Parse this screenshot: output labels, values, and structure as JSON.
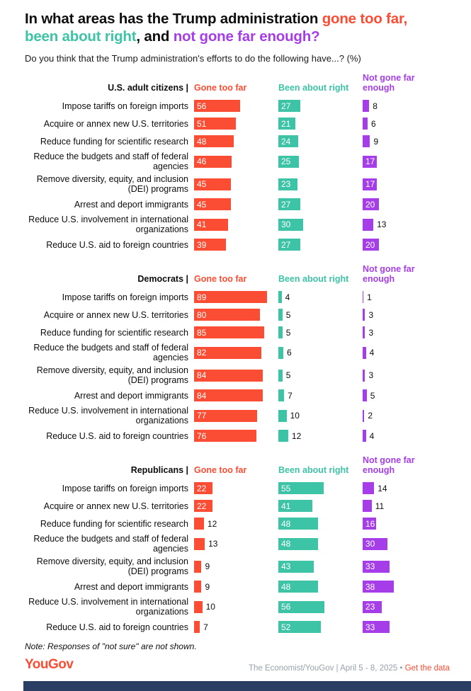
{
  "title": {
    "prefix": "In what areas has the Trump administration ",
    "highlight_red": "gone too far,",
    "sep1": " ",
    "highlight_teal": "been about right",
    "sep2": ", and ",
    "highlight_purple": "not gone far enough?"
  },
  "subtitle": "Do you think that the Trump administration's efforts to do the following have...? (%)",
  "note": "Note: Responses of \"not sure\" are not shown.",
  "footer": {
    "logo": "YouGov",
    "source": "The Economist/YouGov | April 5 - 8, 2025 • ",
    "link": "Get the data"
  },
  "chart_data": {
    "type": "bar",
    "unit": "%",
    "xlim": [
      0,
      100
    ],
    "legend_position": "top",
    "series_names": [
      "Gone too far",
      "Been about right",
      "Not gone far enough"
    ],
    "series_colors": [
      "#fb4d33",
      "#3dc3a6",
      "#a53de8"
    ],
    "categories": [
      "Impose tariffs on foreign imports",
      "Acquire or annex new U.S. territories",
      "Reduce funding for scientific research",
      "Reduce the budgets and staff of federal agencies",
      "Remove diversity, equity, and inclusion (DEI) programs",
      "Arrest and deport immigrants",
      "Reduce U.S. involvement in international organizations",
      "Reduce U.S. aid to foreign countries"
    ],
    "panels": [
      {
        "group": "U.S. adult citizens",
        "series": [
          {
            "name": "Gone too far",
            "values": [
              56,
              51,
              48,
              46,
              45,
              45,
              41,
              39
            ]
          },
          {
            "name": "Been about right",
            "values": [
              27,
              21,
              24,
              25,
              23,
              27,
              30,
              27
            ]
          },
          {
            "name": "Not gone far enough",
            "values": [
              8,
              6,
              9,
              17,
              17,
              20,
              13,
              20
            ]
          }
        ]
      },
      {
        "group": "Democrats",
        "series": [
          {
            "name": "Gone too far",
            "values": [
              89,
              80,
              85,
              82,
              84,
              84,
              77,
              76
            ]
          },
          {
            "name": "Been about right",
            "values": [
              4,
              5,
              5,
              6,
              5,
              7,
              10,
              12
            ]
          },
          {
            "name": "Not gone far enough",
            "values": [
              1,
              3,
              3,
              4,
              3,
              5,
              2,
              4
            ]
          }
        ]
      },
      {
        "group": "Republicans",
        "series": [
          {
            "name": "Gone too far",
            "values": [
              22,
              22,
              12,
              13,
              9,
              9,
              10,
              7
            ]
          },
          {
            "name": "Been about right",
            "values": [
              55,
              41,
              48,
              48,
              43,
              48,
              56,
              52
            ]
          },
          {
            "name": "Not gone far enough",
            "values": [
              14,
              11,
              16,
              30,
              33,
              38,
              23,
              33
            ]
          }
        ]
      }
    ]
  }
}
